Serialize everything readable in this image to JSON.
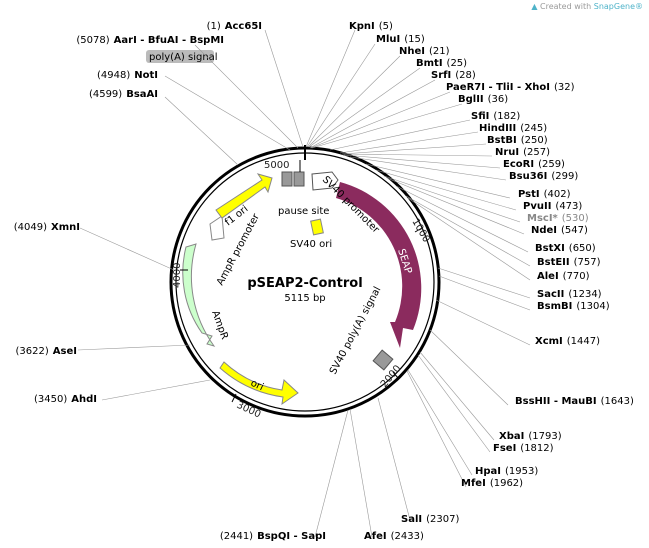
{
  "credit": {
    "prefix": "Created with",
    "brand": "SnapGene®"
  },
  "plasmid": {
    "name": "pSEAP2-Control",
    "size": "5115 bp"
  },
  "ticks": [
    {
      "label": "5000"
    },
    {
      "label": "1000"
    },
    {
      "label": "4000"
    },
    {
      "label": "2000"
    },
    {
      "label": "3000"
    }
  ],
  "features": [
    {
      "label": "SEAP",
      "color": "#8b2b5e"
    },
    {
      "label": "SV40 promoter",
      "color": "#ffffff"
    },
    {
      "label": "SV40 poly(A) signal",
      "color": "#999999"
    },
    {
      "label": "ori",
      "color": "#ffff00"
    },
    {
      "label": "AmpR",
      "color": "#ccffcc"
    },
    {
      "label": "AmpR promoter",
      "color": "#ffffff"
    },
    {
      "label": "f1 ori",
      "color": "#ffff00"
    },
    {
      "label": "pause site",
      "color": "#999999"
    },
    {
      "label": "SV40 ori",
      "color": "#ffff00"
    },
    {
      "label": "poly(A) signal",
      "color": "#bbbbbb"
    }
  ],
  "sites": [
    {
      "pos": "(1)",
      "enzyme": "Acc65I"
    },
    {
      "pos": "(5078)",
      "enzyme": "AarI - BfuAI - BspMI"
    },
    {
      "pos": "(4948)",
      "enzyme": "NotI"
    },
    {
      "pos": "(4599)",
      "enzyme": "BsaAI"
    },
    {
      "enzyme": "KpnI",
      "pos": "(5)"
    },
    {
      "enzyme": "MluI",
      "pos": "(15)"
    },
    {
      "enzyme": "NheI",
      "pos": "(21)"
    },
    {
      "enzyme": "BmtI",
      "pos": "(25)"
    },
    {
      "enzyme": "SrfI",
      "pos": "(28)"
    },
    {
      "enzyme": "PaeR7I - TliI - XhoI",
      "pos": "(32)"
    },
    {
      "enzyme": "BglII",
      "pos": "(36)"
    },
    {
      "enzyme": "SfiI",
      "pos": "(182)"
    },
    {
      "enzyme": "HindIII",
      "pos": "(245)"
    },
    {
      "enzyme": "BstBI",
      "pos": "(250)"
    },
    {
      "enzyme": "NruI",
      "pos": "(257)"
    },
    {
      "enzyme": "EcoRI",
      "pos": "(259)"
    },
    {
      "enzyme": "Bsu36I",
      "pos": "(299)"
    },
    {
      "enzyme": "PstI",
      "pos": "(402)"
    },
    {
      "enzyme": "PvuII",
      "pos": "(473)"
    },
    {
      "enzyme": "MscI*",
      "pos": "(530)"
    },
    {
      "enzyme": "NdeI",
      "pos": "(547)"
    },
    {
      "enzyme": "BstXI",
      "pos": "(650)"
    },
    {
      "enzyme": "BstEII",
      "pos": "(757)"
    },
    {
      "enzyme": "AleI",
      "pos": "(770)"
    },
    {
      "enzyme": "SacII",
      "pos": "(1234)"
    },
    {
      "enzyme": "BsmBI",
      "pos": "(1304)"
    },
    {
      "enzyme": "XcmI",
      "pos": "(1447)"
    },
    {
      "enzyme": "BssHII - MauBI",
      "pos": "(1643)"
    },
    {
      "enzyme": "XbaI",
      "pos": "(1793)"
    },
    {
      "enzyme": "FseI",
      "pos": "(1812)"
    },
    {
      "enzyme": "HpaI",
      "pos": "(1953)"
    },
    {
      "enzyme": "MfeI",
      "pos": "(1962)"
    },
    {
      "enzyme": "SalI",
      "pos": "(2307)"
    },
    {
      "pos": "(2441)",
      "enzyme": "BspQI - SapI"
    },
    {
      "enzyme": "AfeI",
      "pos": "(2433)"
    },
    {
      "pos": "(3450)",
      "enzyme": "AhdI"
    },
    {
      "pos": "(3622)",
      "enzyme": "AseI"
    },
    {
      "pos": "(4049)",
      "enzyme": "XmnI"
    }
  ]
}
